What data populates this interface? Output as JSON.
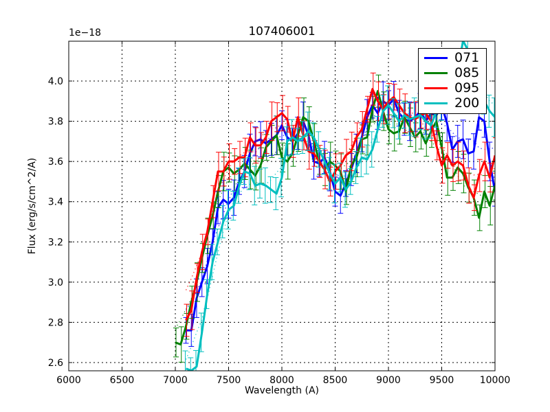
{
  "chart_data": {
    "type": "line",
    "title": "107406001",
    "xlabel": "Wavelength (A)",
    "ylabel": "Flux (erg/s/cm^2/A)",
    "y_offset_label": "1e−18",
    "xlim": [
      6000,
      10000
    ],
    "ylim": [
      2.56,
      4.2
    ],
    "xticks": [
      6000,
      6500,
      7000,
      7500,
      8000,
      8500,
      9000,
      9500,
      10000
    ],
    "xtick_labels": [
      "6000",
      "6500",
      "7000",
      "7500",
      "8000",
      "8500",
      "9000",
      "9500",
      "10000"
    ],
    "yticks": [
      2.6,
      2.8,
      3.0,
      3.2,
      3.4,
      3.6,
      3.8,
      4.0
    ],
    "ytick_labels": [
      "2.6",
      "2.8",
      "3.0",
      "3.2",
      "3.4",
      "3.6",
      "3.8",
      "4.0"
    ],
    "grid": true,
    "legend_position": "upper right",
    "error_bar_half_width": 0.08,
    "series": [
      {
        "name": "071",
        "color": "#0000ff",
        "x": [
          7100,
          7150,
          7200,
          7250,
          7300,
          7350,
          7400,
          7450,
          7500,
          7550,
          7600,
          7650,
          7700,
          7750,
          7800,
          7850,
          7900,
          7950,
          8000,
          8050,
          8100,
          8150,
          8200,
          8250,
          8300,
          8350,
          8400,
          8450,
          8500,
          8550,
          8600,
          8650,
          8700,
          8750,
          8800,
          8850,
          8900,
          8950,
          9000,
          9050,
          9100,
          9150,
          9200,
          9250,
          9300,
          9350,
          9400,
          9450,
          9500,
          9550,
          9600,
          9650,
          9700,
          9750,
          9800,
          9850,
          9900,
          9950,
          10000
        ],
        "values": [
          2.76,
          2.76,
          2.92,
          3.0,
          3.08,
          3.2,
          3.37,
          3.41,
          3.39,
          3.42,
          3.5,
          3.55,
          3.64,
          3.7,
          3.71,
          3.69,
          3.71,
          3.73,
          3.78,
          3.72,
          3.7,
          3.74,
          3.8,
          3.73,
          3.6,
          3.59,
          3.62,
          3.55,
          3.45,
          3.43,
          3.49,
          3.56,
          3.64,
          3.72,
          3.82,
          3.88,
          3.84,
          3.9,
          3.88,
          3.91,
          3.84,
          3.81,
          3.8,
          3.82,
          3.85,
          3.8,
          3.84,
          3.83,
          3.88,
          3.79,
          3.66,
          3.7,
          3.71,
          3.64,
          3.65,
          3.82,
          3.8,
          3.6,
          3.45
        ]
      },
      {
        "name": "085",
        "color": "#008000",
        "x": [
          7000,
          7050,
          7100,
          7150,
          7200,
          7250,
          7300,
          7350,
          7400,
          7450,
          7500,
          7550,
          7600,
          7650,
          7700,
          7750,
          7800,
          7850,
          7900,
          7950,
          8000,
          8050,
          8100,
          8150,
          8200,
          8250,
          8300,
          8350,
          8400,
          8450,
          8500,
          8550,
          8600,
          8650,
          8700,
          8750,
          8800,
          8850,
          8900,
          8950,
          9000,
          9050,
          9100,
          9150,
          9200,
          9250,
          9300,
          9350,
          9400,
          9450,
          9500,
          9550,
          9600,
          9650,
          9700,
          9750,
          9800,
          9850,
          9900,
          9950,
          10000
        ],
        "values": [
          2.7,
          2.69,
          2.78,
          2.9,
          3.0,
          3.12,
          3.23,
          3.33,
          3.45,
          3.55,
          3.57,
          3.54,
          3.56,
          3.59,
          3.56,
          3.53,
          3.58,
          3.67,
          3.7,
          3.73,
          3.62,
          3.6,
          3.64,
          3.73,
          3.82,
          3.8,
          3.7,
          3.6,
          3.56,
          3.6,
          3.58,
          3.55,
          3.45,
          3.58,
          3.62,
          3.71,
          3.72,
          3.86,
          3.95,
          3.85,
          3.76,
          3.74,
          3.75,
          3.82,
          3.77,
          3.72,
          3.75,
          3.69,
          3.75,
          3.8,
          3.67,
          3.52,
          3.52,
          3.57,
          3.54,
          3.47,
          3.42,
          3.32,
          3.45,
          3.38,
          3.48
        ]
      },
      {
        "name": "095",
        "color": "#ff0000",
        "x": [
          7100,
          7150,
          7200,
          7250,
          7300,
          7350,
          7400,
          7450,
          7500,
          7550,
          7600,
          7650,
          7700,
          7750,
          7800,
          7850,
          7900,
          7950,
          8000,
          8050,
          8100,
          8150,
          8200,
          8250,
          8300,
          8350,
          8400,
          8450,
          8500,
          8550,
          8600,
          8650,
          8700,
          8750,
          8800,
          8850,
          8900,
          8950,
          9000,
          9050,
          9100,
          9150,
          9200,
          9250,
          9300,
          9350,
          9400,
          9450,
          9500,
          9550,
          9600,
          9650,
          9700,
          9750,
          9800,
          9850,
          9900,
          9950,
          10000
        ],
        "values": [
          2.81,
          2.86,
          3.02,
          3.15,
          3.25,
          3.4,
          3.55,
          3.55,
          3.6,
          3.6,
          3.62,
          3.62,
          3.72,
          3.68,
          3.68,
          3.72,
          3.8,
          3.82,
          3.84,
          3.81,
          3.7,
          3.82,
          3.73,
          3.65,
          3.64,
          3.6,
          3.56,
          3.5,
          3.55,
          3.58,
          3.63,
          3.65,
          3.72,
          3.76,
          3.86,
          3.96,
          3.9,
          3.86,
          3.9,
          3.92,
          3.88,
          3.84,
          3.82,
          3.81,
          3.83,
          3.84,
          3.8,
          3.68,
          3.58,
          3.63,
          3.58,
          3.6,
          3.58,
          3.48,
          3.42,
          3.53,
          3.6,
          3.52,
          3.63
        ]
      },
      {
        "name": "200",
        "color": "#00bfbf",
        "x": [
          7100,
          7150,
          7200,
          7250,
          7300,
          7350,
          7400,
          7450,
          7500,
          7550,
          7600,
          7650,
          7700,
          7750,
          7800,
          7850,
          7900,
          7950,
          8000,
          8050,
          8100,
          8150,
          8200,
          8250,
          8300,
          8350,
          8400,
          8450,
          8500,
          8550,
          8600,
          8650,
          8700,
          8750,
          8800,
          8850,
          8900,
          8950,
          9000,
          9050,
          9100,
          9150,
          9200,
          9250,
          9300,
          9350,
          9400,
          9450,
          9500,
          9550,
          9600,
          9650,
          9700,
          9750,
          9800,
          9850,
          9900,
          9950,
          10000
        ],
        "values": [
          2.57,
          2.56,
          2.58,
          2.75,
          2.94,
          3.1,
          3.2,
          3.3,
          3.36,
          3.38,
          3.48,
          3.55,
          3.54,
          3.48,
          3.49,
          3.48,
          3.46,
          3.44,
          3.52,
          3.7,
          3.72,
          3.7,
          3.72,
          3.75,
          3.72,
          3.66,
          3.6,
          3.54,
          3.49,
          3.52,
          3.46,
          3.5,
          3.57,
          3.62,
          3.61,
          3.66,
          3.76,
          3.85,
          3.88,
          3.84,
          3.8,
          3.83,
          3.81,
          3.82,
          3.83,
          3.8,
          3.78,
          3.85,
          3.9,
          3.95,
          4.0,
          4.05,
          4.2,
          4.15,
          3.98,
          3.95,
          3.9,
          3.85,
          3.82
        ]
      }
    ]
  }
}
